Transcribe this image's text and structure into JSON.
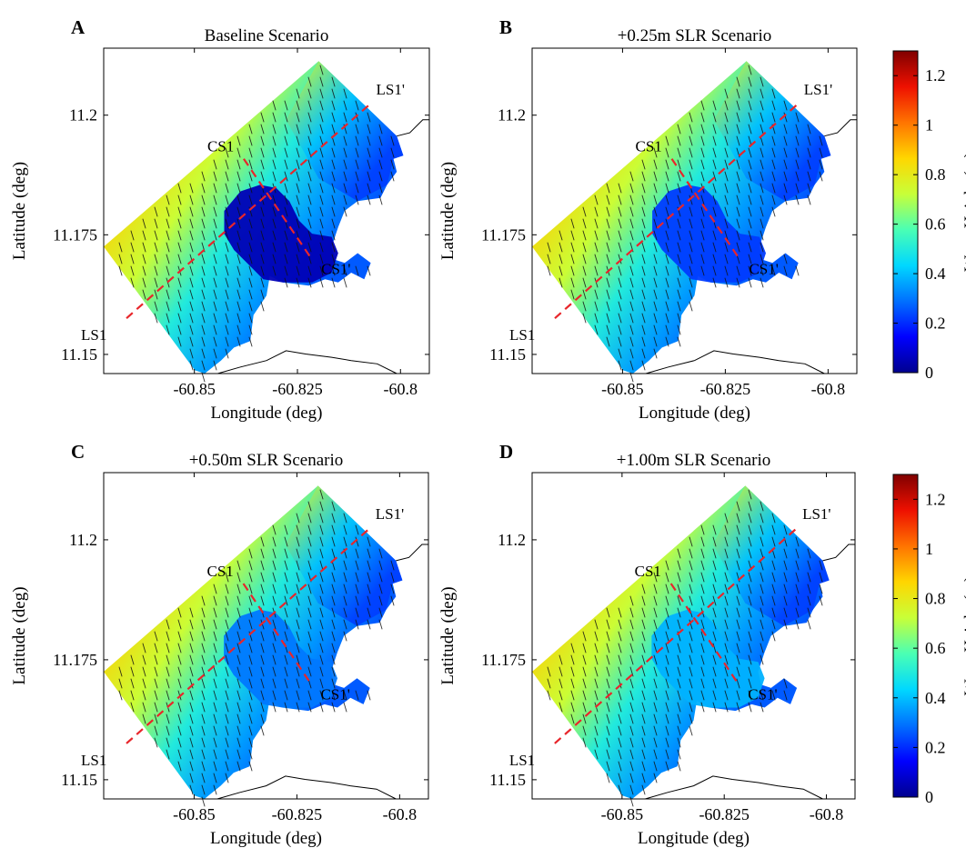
{
  "figure": {
    "colors": {
      "transect": "#e8262b",
      "coastline": "#000000",
      "land": "#ffffff",
      "frame": "#000000"
    },
    "colormap": [
      "#00008f",
      "#0000ff",
      "#0070ff",
      "#00d8ff",
      "#4affb4",
      "#c8ff38",
      "#ffd600",
      "#ff7400",
      "#ee1000",
      "#800000"
    ],
    "colorbar": {
      "label": "Wave Height (m)",
      "min": 0,
      "max": 1.3,
      "ticks": [
        "0",
        "0.2",
        "0.4",
        "0.6",
        "0.8",
        "1",
        "1.2"
      ],
      "tick_values": [
        0,
        0.2,
        0.4,
        0.6,
        0.8,
        1.0,
        1.2
      ]
    }
  },
  "chart_data": [
    {
      "type": "heatmap",
      "panel_label": "A",
      "title": "Baseline Scenario",
      "xlabel": "Longitude (deg)",
      "ylabel": "Latitude (deg)",
      "xticks": [
        "-60.85",
        "-60.825",
        "-60.8"
      ],
      "xtick_values": [
        -60.85,
        -60.825,
        -60.8
      ],
      "yticks": [
        "11.2",
        "11.175",
        "11.15"
      ],
      "ytick_values": [
        11.2,
        11.175,
        11.15
      ],
      "xlim": [
        -60.872,
        -60.793
      ],
      "ylim": [
        11.146,
        11.214
      ],
      "annotations": [
        "LS1",
        "LS1'",
        "CS1",
        "CS1'"
      ],
      "sheltered_wave_height": 0.05,
      "offshore_wave_height": 0.85,
      "wave_height_range": [
        0,
        0.95
      ]
    },
    {
      "type": "heatmap",
      "panel_label": "B",
      "title": "+0.25m SLR Scenario",
      "xlabel": "Longitude (deg)",
      "ylabel": "Latitude (deg)",
      "xticks": [
        "-60.85",
        "-60.825",
        "-60.8"
      ],
      "xtick_values": [
        -60.85,
        -60.825,
        -60.8
      ],
      "yticks": [
        "11.2",
        "11.175",
        "11.15"
      ],
      "ytick_values": [
        11.2,
        11.175,
        11.15
      ],
      "xlim": [
        -60.872,
        -60.793
      ],
      "ylim": [
        11.146,
        11.214
      ],
      "annotations": [
        "LS1",
        "LS1'",
        "CS1",
        "CS1'"
      ],
      "sheltered_wave_height": 0.22,
      "offshore_wave_height": 0.85,
      "wave_height_range": [
        0,
        1.0
      ]
    },
    {
      "type": "heatmap",
      "panel_label": "C",
      "title": "+0.50m SLR Scenario",
      "xlabel": "Longitude (deg)",
      "ylabel": "Latitude (deg)",
      "xticks": [
        "-60.85",
        "-60.825",
        "-60.8"
      ],
      "xtick_values": [
        -60.85,
        -60.825,
        -60.8
      ],
      "yticks": [
        "11.2",
        "11.175",
        "11.15"
      ],
      "ytick_values": [
        11.2,
        11.175,
        11.15
      ],
      "xlim": [
        -60.872,
        -60.793
      ],
      "ylim": [
        11.146,
        11.214
      ],
      "annotations": [
        "LS1",
        "LS1'",
        "CS1",
        "CS1'"
      ],
      "sheltered_wave_height": 0.3,
      "offshore_wave_height": 0.85,
      "wave_height_range": [
        0,
        1.0
      ]
    },
    {
      "type": "heatmap",
      "panel_label": "D",
      "title": "+1.00m SLR Scenario",
      "xlabel": "Longitude (deg)",
      "ylabel": "Latitude (deg)",
      "xticks": [
        "-60.85",
        "-60.825",
        "-60.8"
      ],
      "xtick_values": [
        -60.85,
        -60.825,
        -60.8
      ],
      "yticks": [
        "11.2",
        "11.175",
        "11.15"
      ],
      "ytick_values": [
        11.2,
        11.175,
        11.15
      ],
      "xlim": [
        -60.872,
        -60.793
      ],
      "ylim": [
        11.146,
        11.214
      ],
      "annotations": [
        "LS1",
        "LS1'",
        "CS1",
        "CS1'"
      ],
      "sheltered_wave_height": 0.38,
      "offshore_wave_height": 0.85,
      "wave_height_range": [
        0,
        1.05
      ]
    }
  ]
}
